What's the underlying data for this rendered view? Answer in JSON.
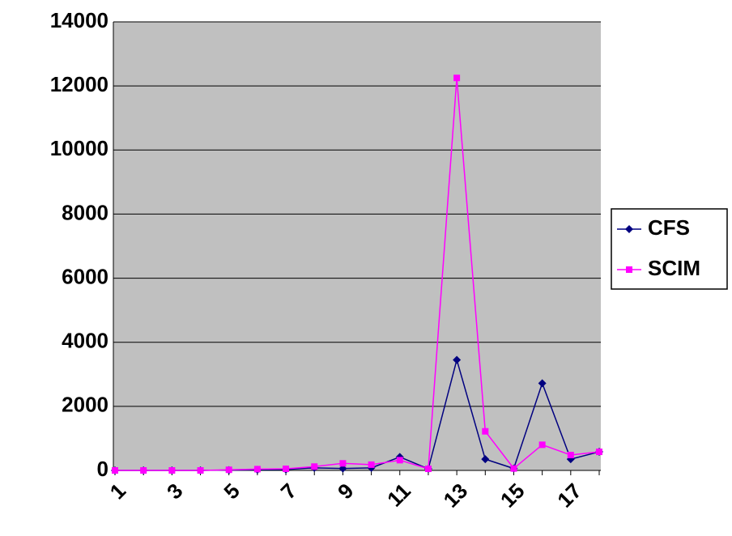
{
  "chart_data": {
    "type": "line",
    "categories": [
      "1",
      null,
      "3",
      null,
      "5",
      null,
      "7",
      null,
      "9",
      null,
      "11",
      null,
      "13",
      null,
      "15",
      null,
      "17",
      null
    ],
    "series": [
      {
        "name": "CFS",
        "color": "#000080",
        "marker": "diamond",
        "values": [
          0,
          0,
          0,
          0,
          10,
          20,
          30,
          80,
          60,
          80,
          420,
          50,
          3450,
          350,
          60,
          2720,
          350,
          580
        ]
      },
      {
        "name": "SCIM",
        "color": "#ff00ff",
        "marker": "square",
        "values": [
          0,
          0,
          0,
          0,
          20,
          40,
          50,
          120,
          220,
          180,
          320,
          50,
          12250,
          1220,
          60,
          800,
          480,
          580
        ]
      }
    ],
    "ylim": [
      0,
      14000
    ],
    "yticks": [
      0,
      2000,
      4000,
      6000,
      8000,
      10000,
      12000,
      14000
    ],
    "grid": true,
    "legend": "right"
  }
}
